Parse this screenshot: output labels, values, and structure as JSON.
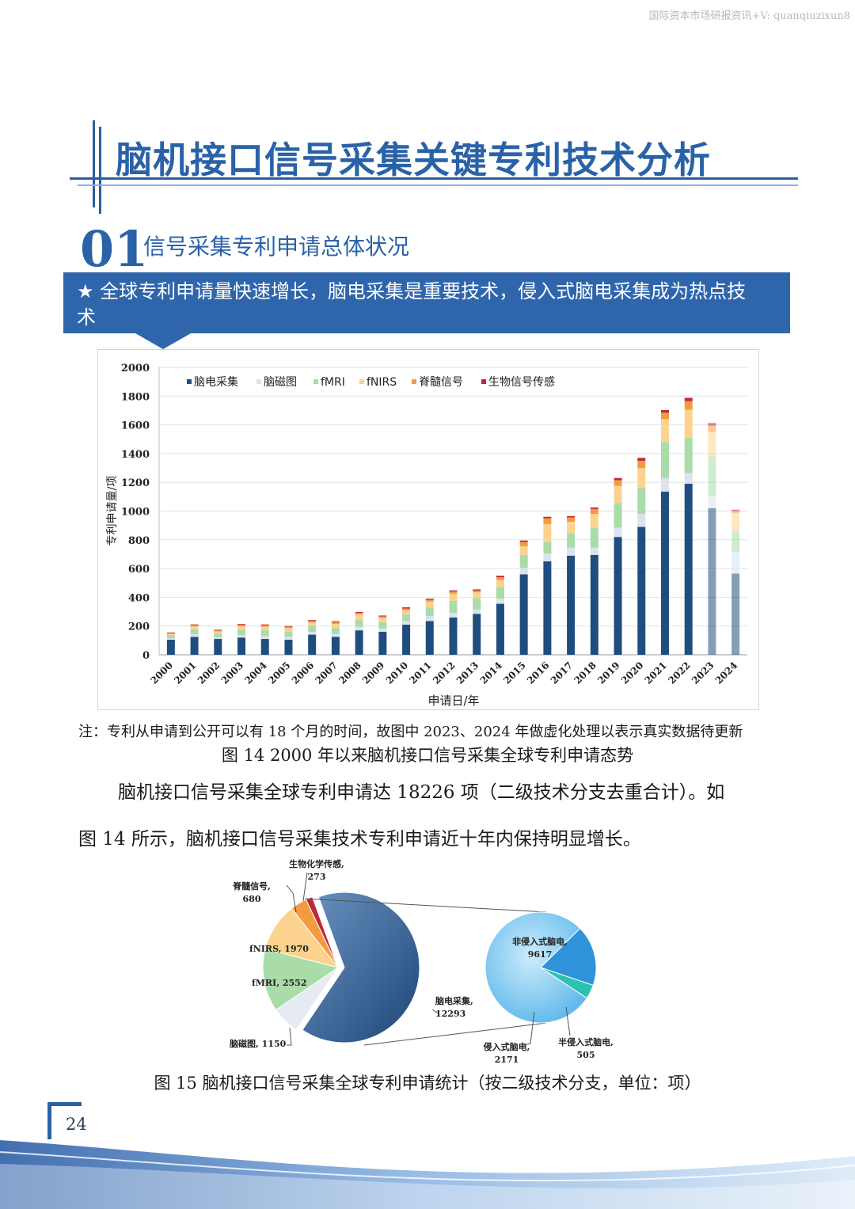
{
  "watermark": "国际资本市场研报资讯+V: quanqiuzixun8",
  "title": "脑机接口信号采集关键专利技术分析",
  "section": {
    "number": "01",
    "title": "信号采集专利申请总体状况"
  },
  "banner": {
    "line1": "★ 全球专利申请量快速增长，脑电采集是重要技术，侵入式脑电采集成为热点技",
    "line2": "术"
  },
  "chart_data": [
    {
      "type": "bar",
      "stacked": true,
      "ylabel": "专利申请量/项",
      "xlabel": "申请日/年",
      "ylim": [
        0,
        2000
      ],
      "yticks": [
        0,
        200,
        400,
        600,
        800,
        1000,
        1200,
        1400,
        1600,
        1800,
        2000
      ],
      "legend_position": "top-left",
      "faded_categories": [
        "2023",
        "2024"
      ],
      "categories": [
        "2000",
        "2001",
        "2002",
        "2003",
        "2004",
        "2005",
        "2006",
        "2007",
        "2008",
        "2009",
        "2010",
        "2011",
        "2012",
        "2013",
        "2014",
        "2015",
        "2016",
        "2017",
        "2018",
        "2019",
        "2020",
        "2021",
        "2022",
        "2023",
        "2024"
      ],
      "series": [
        {
          "name": "脑电采集",
          "color": "#1f4e7e",
          "values": [
            105,
            125,
            110,
            120,
            110,
            105,
            140,
            125,
            170,
            160,
            210,
            235,
            260,
            285,
            355,
            560,
            650,
            690,
            695,
            820,
            890,
            1135,
            1190,
            1020,
            565
          ]
        },
        {
          "name": "脑磁图",
          "color": "#dbe3ee",
          "values": [
            10,
            18,
            12,
            18,
            20,
            20,
            20,
            20,
            25,
            22,
            25,
            35,
            30,
            30,
            35,
            45,
            55,
            55,
            50,
            65,
            90,
            95,
            75,
            80,
            150
          ]
        },
        {
          "name": "fMRI",
          "color": "#a9dca9",
          "values": [
            20,
            35,
            25,
            35,
            40,
            35,
            40,
            40,
            45,
            45,
            45,
            60,
            85,
            80,
            80,
            90,
            80,
            100,
            140,
            170,
            180,
            250,
            245,
            280,
            145
          ]
        },
        {
          "name": "fNIRS",
          "color": "#fbd38e",
          "values": [
            10,
            20,
            15,
            25,
            25,
            25,
            25,
            30,
            40,
            30,
            30,
            40,
            50,
            40,
            50,
            60,
            125,
            80,
            95,
            120,
            140,
            160,
            195,
            170,
            125
          ]
        },
        {
          "name": "脊髓信号",
          "color": "#f39c3f",
          "values": [
            5,
            8,
            7,
            10,
            10,
            10,
            10,
            12,
            12,
            10,
            12,
            12,
            15,
            12,
            20,
            30,
            40,
            30,
            35,
            40,
            50,
            45,
            60,
            45,
            15
          ]
        },
        {
          "name": "生物信号传感",
          "color": "#c0263a",
          "values": [
            5,
            5,
            5,
            6,
            6,
            5,
            6,
            6,
            6,
            6,
            8,
            8,
            8,
            8,
            10,
            10,
            10,
            10,
            10,
            15,
            20,
            18,
            23,
            18,
            10
          ]
        }
      ]
    },
    {
      "type": "pie",
      "slices": [
        {
          "label": "脑电采集,",
          "value_text": "12293",
          "value": 12293,
          "color": "#1f4e7e"
        },
        {
          "label": "脑磁图,",
          "value_text": "1150",
          "value": 1150,
          "color": "#e6ebf2"
        },
        {
          "label": "fMRI,",
          "value_text": "2552",
          "value": 2552,
          "color": "#a9dca9"
        },
        {
          "label": "fNIRS,",
          "value_text": "1970",
          "value": 1970,
          "color": "#fbd38e"
        },
        {
          "label": "脊髓信号,",
          "value_text": "680",
          "value": 680,
          "color": "#f39c3f"
        },
        {
          "label": "生物化学传感,",
          "value_text": "273",
          "value": 273,
          "color": "#c0263a"
        }
      ],
      "breakdown_of": "脑电采集",
      "breakdown": [
        {
          "label": "非侵入式脑电,",
          "value_text": "9617",
          "value": 9617,
          "color": "#73c5ef"
        },
        {
          "label": "侵入式脑电,",
          "value_text": "2171",
          "value": 2171,
          "color": "#2e93d8"
        },
        {
          "label": "半侵入式脑电,",
          "value_text": "505",
          "value": 505,
          "color": "#2cc1b5"
        }
      ]
    }
  ],
  "note": "注：专利从申请到公开可以有 18 个月的时间，故图中 2023、2024 年做虚化处理以表示真实数据待更新",
  "fig14_caption": "图 14 2000 年以来脑机接口信号采集全球专利申请态势",
  "paragraph": {
    "line1": "脑机接口信号采集全球专利申请达 18226 项（二级技术分支去重合计）。如",
    "line2": "图 14 所示，脑机接口信号采集技术专利申请近十年内保持明显增长。"
  },
  "fig15_caption": "图 15  脑机接口信号采集全球专利申请统计（按二级技术分支，单位：项）",
  "page_number": "24"
}
